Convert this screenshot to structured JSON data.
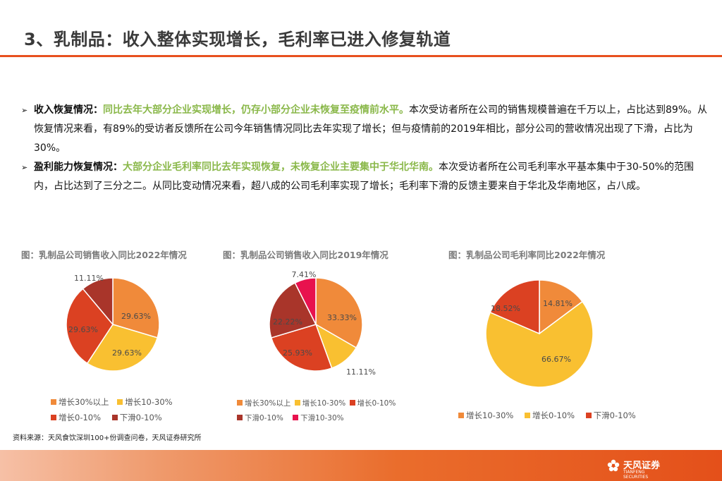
{
  "page": {
    "title": "3、乳制品：收入整体实现增长，毛利率已进入修复轨道"
  },
  "bullets": [
    {
      "lead": "收入恢复情况：",
      "highlight": "同比去年大部分企业实现增长，仍存小部分企业未恢复至疫情前水平。",
      "rest": "本次受访者所在公司的销售规模普遍在千万以上，占比达到89%。从恢复情况来看，有89%的受访者反馈所在公司今年销售情况同比去年实现了增长；但与疫情前的2019年相比，部分公司的营收情况出现了下滑，占比为30%。"
    },
    {
      "lead": "盈利能力恢复情况：",
      "highlight": "大部分企业毛利率同比去年实现恢复，未恢复企业主要集中于华北华南。",
      "rest": "本次受访者所在公司毛利率水平基本集中于30-50%的范围内，占比达到了三分之二。从同比变动情况来看，超八成的公司毛利率实现了增长；毛利率下滑的反馈主要来自于华北及华南地区，占八成。"
    }
  ],
  "chart_data": [
    {
      "type": "pie",
      "title": "图：乳制品公司销售收入同比2022年情况",
      "categories": [
        "增长30%以上",
        "增长10-30%",
        "增长0-10%",
        "下滑0-10%"
      ],
      "values": [
        29.63,
        29.63,
        29.63,
        11.11
      ],
      "labels": [
        "29.63%",
        "29.63%",
        "29.63%",
        "11.11%"
      ],
      "colors": [
        "#f08a3a",
        "#f9c031",
        "#db4122",
        "#a9352a"
      ],
      "legend_position": "bottom"
    },
    {
      "type": "pie",
      "title": "图：乳制品公司销售收入同比2019年情况",
      "categories": [
        "增长30%以上",
        "增长10-30%",
        "增长0-10%",
        "下滑0-10%",
        "下滑10-30%"
      ],
      "values": [
        33.33,
        11.11,
        25.93,
        22.22,
        7.41
      ],
      "labels": [
        "33.33%",
        "11.11%",
        "25.93%",
        "22.22%",
        "7.41%"
      ],
      "colors": [
        "#f08a3a",
        "#f9c031",
        "#db4122",
        "#a9352a",
        "#e8124e"
      ],
      "legend_position": "bottom"
    },
    {
      "type": "pie",
      "title": "图：乳制品公司毛利率同比2022年情况",
      "categories": [
        "增长10-30%",
        "增长0-10%",
        "下滑0-10%"
      ],
      "values": [
        14.81,
        66.67,
        18.52
      ],
      "labels": [
        "14.81%",
        "66.67%",
        "18.52%"
      ],
      "colors": [
        "#f08a3a",
        "#f9c031",
        "#db4122"
      ],
      "legend_position": "bottom"
    }
  ],
  "source": "资料来源：天风食饮深圳100+份调查问卷，天风证券研究所",
  "logo": {
    "name": "天风证券",
    "sub": "TIANFENG SECURITIES",
    "alt": "天风证券 logo"
  }
}
